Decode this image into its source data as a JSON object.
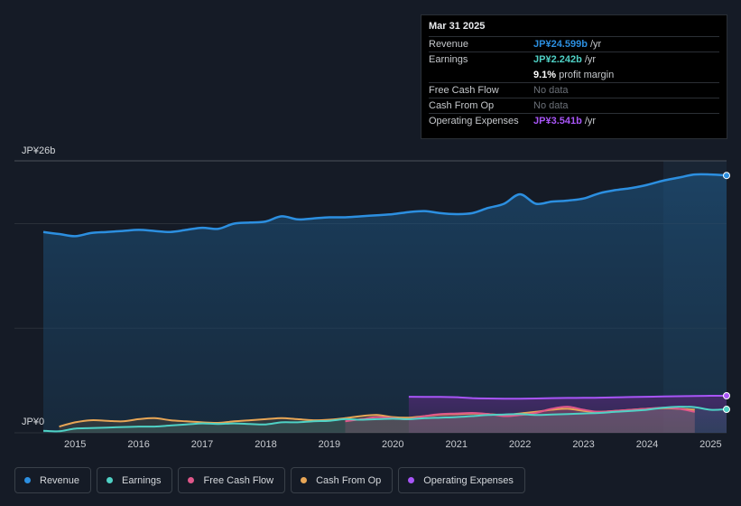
{
  "tooltip": {
    "date": "Mar 31 2025",
    "rows": [
      {
        "label": "Revenue",
        "value": "JP¥24.599b",
        "unit": "/yr",
        "color": "#2c8fe0"
      },
      {
        "label": "Earnings",
        "value": "JP¥2.242b",
        "unit": "/yr",
        "color": "#4fd1c5"
      },
      {
        "label": "",
        "value": "9.1%",
        "unit": "profit margin",
        "color": "#ffffff"
      },
      {
        "label": "Free Cash Flow",
        "value": "No data",
        "unit": "",
        "color": "#6b7078"
      },
      {
        "label": "Cash From Op",
        "value": "No data",
        "unit": "",
        "color": "#6b7078"
      },
      {
        "label": "Operating Expenses",
        "value": "JP¥3.541b",
        "unit": "/yr",
        "color": "#a855f7"
      }
    ]
  },
  "colors": {
    "revenue": "#2c8fe0",
    "earnings": "#4fd1c5",
    "free_cash_flow": "#e0578a",
    "cash_from_op": "#e8a656",
    "operating_expenses": "#a855f7"
  },
  "chart_data": {
    "type": "area",
    "ylabel_top": "JP¥26b",
    "ylabel_bottom": "JP¥0",
    "ylim": [
      0,
      26
    ],
    "xlim": [
      2014.5,
      2025.25
    ],
    "x_ticks": [
      "2015",
      "2016",
      "2017",
      "2018",
      "2019",
      "2020",
      "2021",
      "2022",
      "2023",
      "2024",
      "2025"
    ],
    "x_tick_values": [
      2015,
      2016,
      2017,
      2018,
      2019,
      2020,
      2021,
      2022,
      2023,
      2024,
      2025
    ],
    "series": [
      {
        "name": "Revenue",
        "key": "revenue",
        "x": [
          2014.5,
          2014.75,
          2015.0,
          2015.25,
          2015.5,
          2015.75,
          2016.0,
          2016.25,
          2016.5,
          2016.75,
          2017.0,
          2017.25,
          2017.5,
          2017.75,
          2018.0,
          2018.25,
          2018.5,
          2018.75,
          2019.0,
          2019.25,
          2019.5,
          2019.75,
          2020.0,
          2020.25,
          2020.5,
          2020.75,
          2021.0,
          2021.25,
          2021.5,
          2021.75,
          2022.0,
          2022.25,
          2022.5,
          2022.75,
          2023.0,
          2023.25,
          2023.5,
          2023.75,
          2024.0,
          2024.25,
          2024.5,
          2024.75,
          2025.0,
          2025.25
        ],
        "values": [
          19.2,
          19.0,
          18.8,
          19.1,
          19.2,
          19.3,
          19.4,
          19.3,
          19.2,
          19.4,
          19.6,
          19.5,
          20.0,
          20.1,
          20.2,
          20.7,
          20.4,
          20.5,
          20.6,
          20.6,
          20.7,
          20.8,
          20.9,
          21.1,
          21.2,
          21.0,
          20.9,
          21.0,
          21.5,
          21.9,
          22.8,
          21.9,
          22.1,
          22.2,
          22.4,
          22.9,
          23.2,
          23.4,
          23.7,
          24.1,
          24.4,
          24.7,
          24.7,
          24.599
        ]
      },
      {
        "name": "Earnings",
        "key": "earnings",
        "x": [
          2014.5,
          2014.75,
          2015.0,
          2015.25,
          2015.5,
          2015.75,
          2016.0,
          2016.25,
          2016.5,
          2016.75,
          2017.0,
          2017.25,
          2017.5,
          2017.75,
          2018.0,
          2018.25,
          2018.5,
          2018.75,
          2019.0,
          2019.25,
          2019.5,
          2019.75,
          2020.0,
          2020.25,
          2020.5,
          2020.75,
          2021.0,
          2021.25,
          2021.5,
          2021.75,
          2022.0,
          2022.25,
          2022.5,
          2022.75,
          2023.0,
          2023.25,
          2023.5,
          2023.75,
          2024.0,
          2024.25,
          2024.5,
          2024.75,
          2025.0,
          2025.25
        ],
        "values": [
          0.2,
          0.15,
          0.4,
          0.45,
          0.5,
          0.55,
          0.6,
          0.6,
          0.7,
          0.8,
          0.9,
          0.85,
          0.9,
          0.85,
          0.8,
          1.0,
          1.0,
          1.1,
          1.15,
          1.3,
          1.25,
          1.3,
          1.35,
          1.3,
          1.4,
          1.45,
          1.5,
          1.6,
          1.7,
          1.75,
          1.8,
          1.7,
          1.75,
          1.8,
          1.85,
          1.9,
          2.0,
          2.1,
          2.2,
          2.4,
          2.5,
          2.45,
          2.2,
          2.242
        ]
      },
      {
        "name": "Free Cash Flow",
        "key": "free_cash_flow",
        "x": [
          2019.25,
          2019.5,
          2019.75,
          2020.0,
          2020.25,
          2020.5,
          2020.75,
          2021.0,
          2021.25,
          2021.5,
          2021.75,
          2022.0,
          2022.25,
          2022.5,
          2022.75,
          2023.0,
          2023.25,
          2023.5,
          2023.75,
          2024.0,
          2024.25,
          2024.5,
          2024.75
        ],
        "values": [
          1.1,
          1.3,
          1.5,
          1.4,
          1.3,
          1.6,
          1.8,
          1.85,
          1.9,
          1.8,
          1.6,
          1.7,
          1.9,
          2.3,
          2.5,
          2.2,
          2.0,
          2.1,
          2.2,
          2.3,
          2.4,
          2.3,
          2.0
        ]
      },
      {
        "name": "Cash From Op",
        "key": "cash_from_op",
        "x": [
          2014.75,
          2015.0,
          2015.25,
          2015.5,
          2015.75,
          2016.0,
          2016.25,
          2016.5,
          2016.75,
          2017.0,
          2017.25,
          2017.5,
          2017.75,
          2018.0,
          2018.25,
          2018.5,
          2018.75,
          2019.0,
          2019.25,
          2019.5,
          2019.75,
          2020.0,
          2020.25,
          2020.5,
          2020.75,
          2021.0,
          2021.25,
          2021.5,
          2021.75,
          2022.0,
          2022.25,
          2022.5,
          2022.75,
          2023.0,
          2023.25,
          2023.5,
          2023.75,
          2024.0,
          2024.25,
          2024.5,
          2024.75
        ],
        "values": [
          0.6,
          1.0,
          1.2,
          1.15,
          1.1,
          1.3,
          1.4,
          1.2,
          1.1,
          1.0,
          0.95,
          1.1,
          1.2,
          1.3,
          1.4,
          1.3,
          1.2,
          1.25,
          1.4,
          1.6,
          1.7,
          1.5,
          1.45,
          1.6,
          1.75,
          1.8,
          1.85,
          1.8,
          1.7,
          1.85,
          2.0,
          2.2,
          2.3,
          2.1,
          2.0,
          2.1,
          2.2,
          2.3,
          2.35,
          2.3,
          2.2
        ]
      },
      {
        "name": "Operating Expenses",
        "key": "operating_expenses",
        "x": [
          2020.25,
          2020.5,
          2020.75,
          2021.0,
          2021.25,
          2021.5,
          2021.75,
          2022.0,
          2022.25,
          2022.5,
          2022.75,
          2023.0,
          2023.25,
          2023.5,
          2023.75,
          2024.0,
          2024.25,
          2024.5,
          2024.75,
          2025.0,
          2025.25
        ],
        "values": [
          3.45,
          3.44,
          3.43,
          3.4,
          3.32,
          3.28,
          3.26,
          3.26,
          3.28,
          3.32,
          3.33,
          3.34,
          3.36,
          3.39,
          3.42,
          3.45,
          3.48,
          3.5,
          3.52,
          3.54,
          3.541
        ]
      }
    ]
  },
  "legend": [
    {
      "label": "Revenue",
      "color": "#2c8fe0"
    },
    {
      "label": "Earnings",
      "color": "#4fd1c5"
    },
    {
      "label": "Free Cash Flow",
      "color": "#e0578a"
    },
    {
      "label": "Cash From Op",
      "color": "#e8a656"
    },
    {
      "label": "Operating Expenses",
      "color": "#a855f7"
    }
  ]
}
